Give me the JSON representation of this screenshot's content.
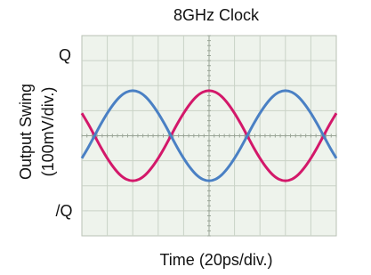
{
  "chart_data": {
    "type": "line",
    "title": "8GHz Clock",
    "xlabel": "Time (20ps/div.)",
    "ylabel": [
      "Output Swing",
      "(100mV/div.)"
    ],
    "annotations": [
      "Q",
      "/Q"
    ],
    "x": [
      0,
      5,
      10,
      15,
      20,
      25,
      30,
      35,
      40,
      45,
      50,
      55,
      60,
      65,
      70,
      75,
      80,
      85,
      90,
      95,
      100,
      105,
      110,
      115,
      120,
      125,
      130,
      135,
      140,
      145,
      150,
      155,
      160,
      165,
      170,
      175,
      180,
      185,
      190,
      195,
      200
    ],
    "series": [
      {
        "name": "Q",
        "color": "#d3186a",
        "values": [
          90,
          47,
          0,
          -47,
          -90,
          -127,
          -156,
          -174,
          -180,
          -174,
          -156,
          -127,
          -90,
          -47,
          0,
          47,
          90,
          127,
          156,
          174,
          180,
          174,
          156,
          127,
          90,
          47,
          0,
          -47,
          -90,
          -127,
          -156,
          -174,
          -180,
          -174,
          -156,
          -127,
          -90,
          -47,
          0,
          47,
          90
        ]
      },
      {
        "name": "/Q",
        "color": "#4a80c4",
        "values": [
          -90,
          -47,
          0,
          47,
          90,
          127,
          156,
          174,
          180,
          174,
          156,
          127,
          90,
          47,
          0,
          -47,
          -90,
          -127,
          -156,
          -174,
          -180,
          -174,
          -156,
          -127,
          -90,
          -47,
          0,
          47,
          90,
          127,
          156,
          174,
          180,
          174,
          156,
          127,
          90,
          47,
          0,
          -47,
          -90
        ]
      }
    ],
    "xlim": [
      0,
      200
    ],
    "ylim": [
      -400,
      400
    ],
    "grid": true
  }
}
